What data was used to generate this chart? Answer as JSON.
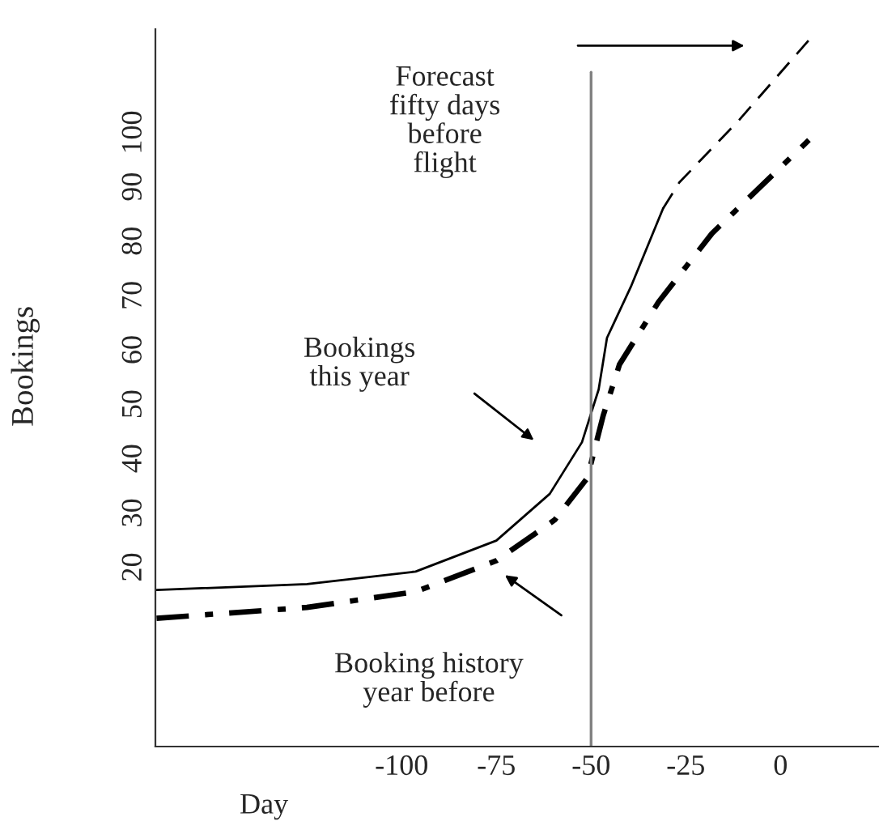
{
  "chart_data": {
    "type": "line",
    "xlabel": "Day",
    "ylabel": "Bookings",
    "xlim": [
      -165,
      26
    ],
    "ylim": [
      -13,
      119
    ],
    "xticks": [
      -100,
      -75,
      -50,
      -25,
      0
    ],
    "yticks": [
      20,
      30,
      40,
      50,
      60,
      70,
      80,
      90,
      100
    ],
    "grid": false,
    "legend": false,
    "marker": "none",
    "series": [
      {
        "color": "#000000",
        "line_style": "solid",
        "x": [
          -164.7,
          -125,
          -96.3,
          -75,
          -60.9,
          -52.4,
          -48,
          -45.8,
          -39.5,
          -31
        ],
        "values": [
          15.8,
          16.9,
          19.2,
          24.9,
          33.5,
          43.0,
          52.7,
          62.2,
          71.6,
          86
        ]
      },
      {
        "color": "#000000",
        "line_style": "dashed",
        "x": [
          -31,
          -26.7,
          -10.9,
          7.5
        ],
        "values": [
          86,
          90.8,
          102.3,
          117
        ]
      },
      {
        "color": "#000000",
        "line_style": "dashdot",
        "x": [
          -164.7,
          -125,
          -96.3,
          -75,
          -59.6,
          -51,
          -46.8,
          -42.5,
          -32.2,
          -18.1,
          7.5
        ],
        "values": [
          10.6,
          12.6,
          15.5,
          21.2,
          28.7,
          36.4,
          47.9,
          57.3,
          68.8,
          81.4,
          98.6
        ]
      }
    ],
    "ref_lines": [
      {
        "axis": "x",
        "value": -50,
        "color": "#808080"
      }
    ],
    "annotations": [
      "Forecast\nfifty days\nbefore\nflight",
      "Bookings\nthis year",
      "Booking history\nyear before"
    ]
  }
}
